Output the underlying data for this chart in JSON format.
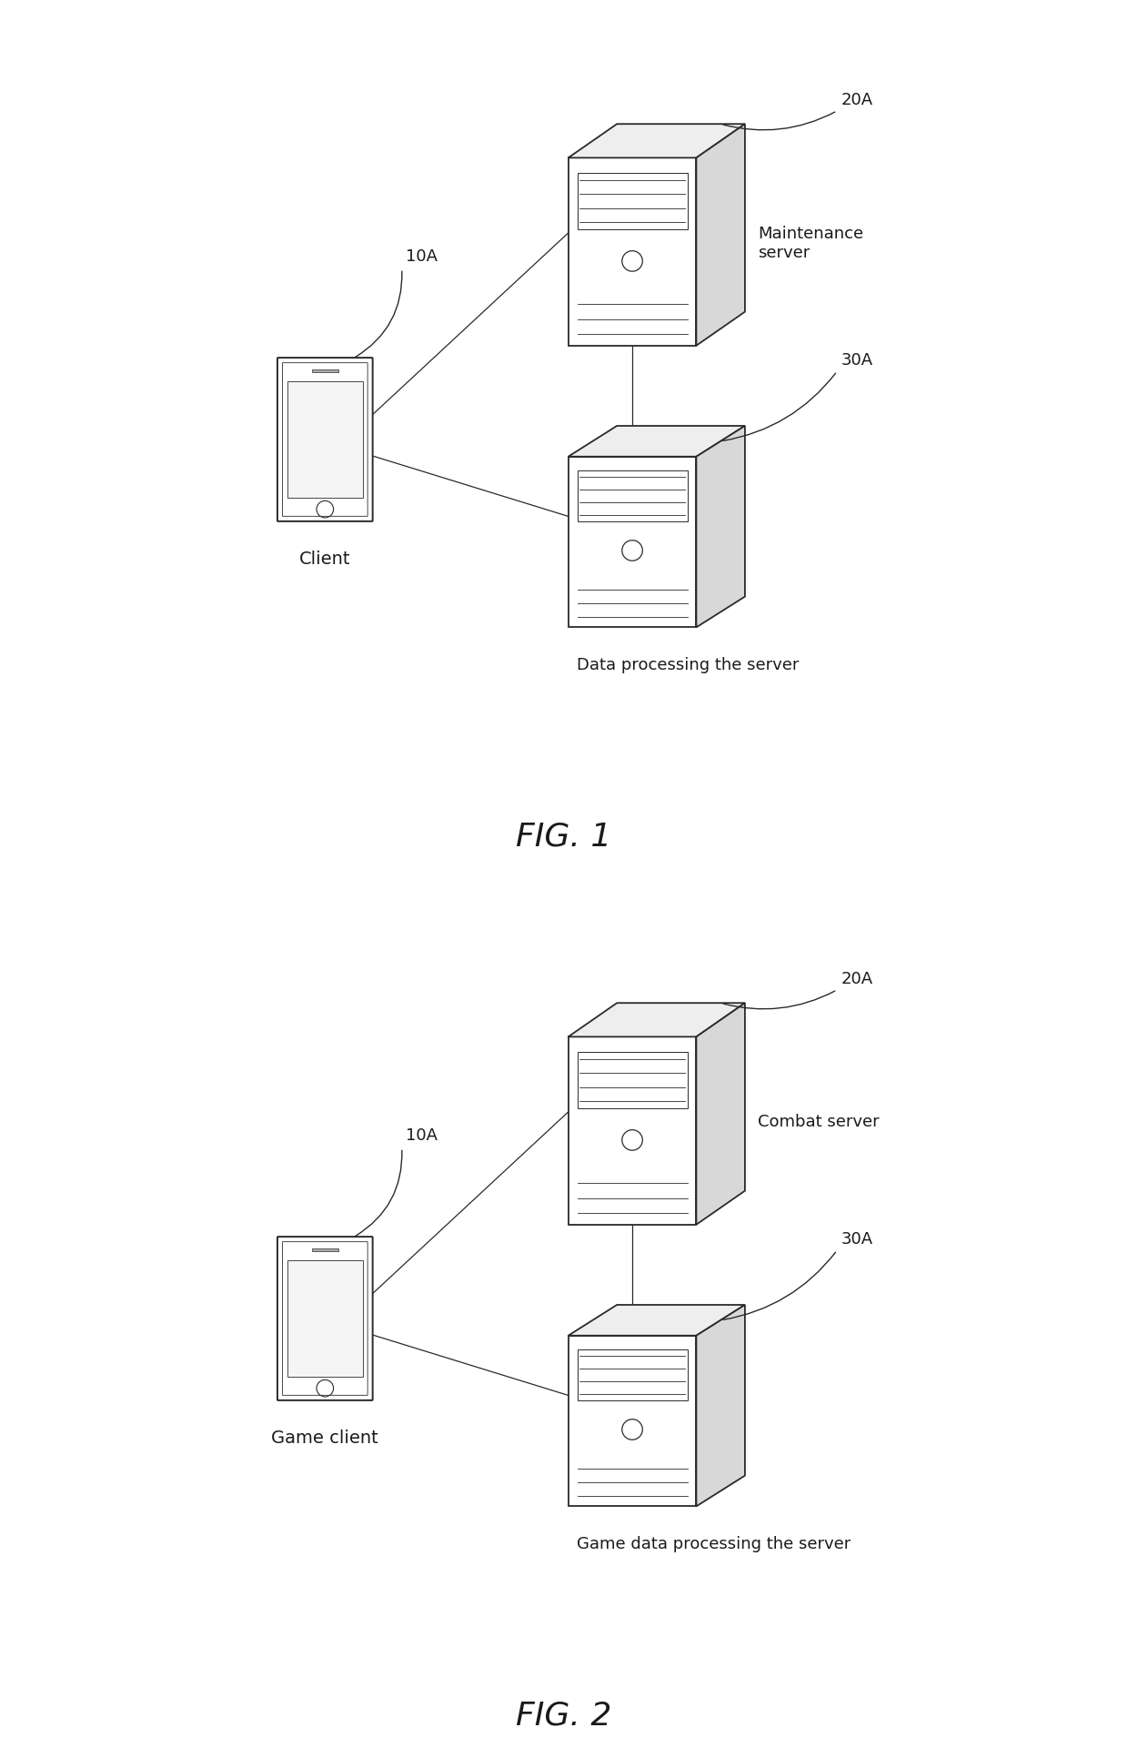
{
  "bg_color": "#ffffff",
  "line_color": "#2a2a2a",
  "text_color": "#1a1a1a",
  "fig1": {
    "title": "FIG. 1",
    "client_label": "Client",
    "client_ref": "10A",
    "server1_label": "Maintenance\nserver",
    "server1_ref": "20A",
    "server2_label": "Data processing the server",
    "server2_ref": "30A"
  },
  "fig2": {
    "title": "FIG. 2",
    "client_label": "Game client",
    "client_ref": "10A",
    "server1_label": "Combat server",
    "server1_ref": "20A",
    "server2_label": "Game data processing the server",
    "server2_ref": "30A"
  }
}
